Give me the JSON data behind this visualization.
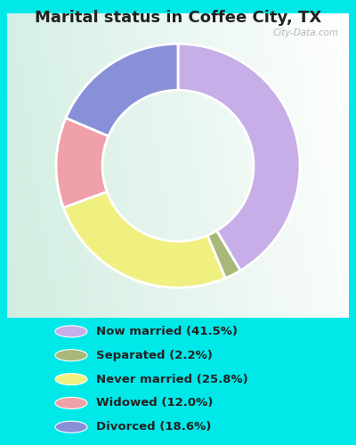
{
  "title": "Marital status in Coffee City, TX",
  "categories": [
    "Now married",
    "Separated",
    "Never married",
    "Widowed",
    "Divorced"
  ],
  "values": [
    41.5,
    2.2,
    25.8,
    12.0,
    18.6
  ],
  "colors": [
    "#c8aee8",
    "#a8b878",
    "#f0f080",
    "#f0a0a8",
    "#8890d8"
  ],
  "legend_colors": [
    "#c8aee8",
    "#a8b878",
    "#f0f080",
    "#f0a0a8",
    "#8890d8"
  ],
  "legend_labels": [
    "Now married (41.5%)",
    "Separated (2.2%)",
    "Never married (25.8%)",
    "Widowed (12.0%)",
    "Divorced (18.6%)"
  ],
  "bg_cyan": "#00e8e8",
  "bg_chart_gradient_left": "#c8ecd8",
  "bg_chart_gradient_right": "#e8f4f0",
  "title_fontsize": 13,
  "title_color": "#222222",
  "donut_width": 0.38,
  "watermark": "City-Data.com",
  "figsize": [
    4.0,
    5.0
  ],
  "dpi": 100
}
